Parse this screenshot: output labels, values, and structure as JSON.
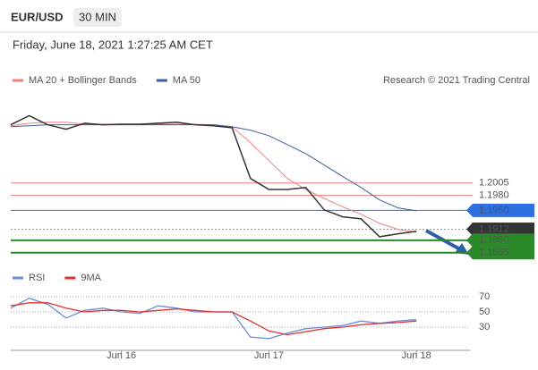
{
  "header": {
    "symbol": "EUR/USD",
    "interval": "30 MIN",
    "timestamp": "Friday, June 18, 2021 1:27:25 AM CET",
    "credit": "Research © 2021 Trading Central"
  },
  "chart_data": [
    {
      "type": "line",
      "categories": [
        null,
        null,
        null,
        null,
        null,
        null,
        "Jun 16",
        null,
        null,
        null,
        null,
        null,
        null,
        null,
        "Jun 17",
        null,
        null,
        null,
        null,
        null,
        null,
        null,
        "Jun 18"
      ],
      "price": [
        1.2122,
        1.214,
        1.2122,
        1.2113,
        1.2125,
        1.2122,
        1.2123,
        1.2123,
        1.2125,
        1.2127,
        1.2122,
        1.212,
        1.2116,
        1.2014,
        1.1992,
        1.1992,
        1.1996,
        1.1951,
        1.1937,
        1.1933,
        1.1897,
        1.1903,
        1.1908
      ],
      "price_color": "#333333",
      "series": [
        {
          "name": "MA 20 + Bollinger Bands",
          "color": "#f08080",
          "values": [
            1.212,
            1.2125,
            1.2127,
            1.2127,
            1.2123,
            1.2123,
            1.2123,
            1.2123,
            1.2123,
            1.2123,
            1.2123,
            1.2122,
            1.2118,
            1.2086,
            1.205,
            1.2014,
            1.1992,
            1.1974,
            1.1957,
            1.1942,
            1.1924,
            1.1912,
            1.1906
          ]
        },
        {
          "name": "MA 50",
          "color": "#3b5fa0",
          "values": [
            1.2118,
            1.212,
            1.2122,
            1.2122,
            1.2122,
            1.2122,
            1.2122,
            1.2122,
            1.2122,
            1.2122,
            1.2122,
            1.2122,
            1.2118,
            1.2111,
            1.21,
            1.2082,
            1.2064,
            1.2041,
            1.2018,
            1.1996,
            1.1971,
            1.1955,
            1.1949
          ]
        }
      ],
      "ylim": [
        1.1843,
        1.2193
      ],
      "levels": {
        "values": [
          1.2005,
          1.198,
          1.195,
          1.1912,
          1.189,
          1.1865
        ],
        "value_labels": [
          "1.2005",
          "1.1980",
          "1.1950",
          "1.1912",
          "1.1890",
          "1.1865"
        ],
        "colors": [
          "#f08080",
          "#f08080",
          "#2f6fe0",
          "#333333",
          "#2a8a2a",
          "#2a8a2a"
        ],
        "badges": [
          false,
          false,
          true,
          true,
          true,
          true
        ]
      }
    },
    {
      "type": "line",
      "series": [
        {
          "name": "RSI",
          "color": "#6a8fd8",
          "values": [
            55,
            68,
            60,
            42,
            52,
            55,
            50,
            48,
            58,
            55,
            50,
            50,
            50,
            17,
            15,
            22,
            28,
            30,
            32,
            38,
            35,
            38,
            40
          ]
        },
        {
          "name": "9MA",
          "color": "#e03030",
          "values": [
            58,
            62,
            62,
            55,
            50,
            52,
            52,
            50,
            52,
            54,
            52,
            50,
            50,
            38,
            25,
            20,
            24,
            28,
            30,
            33,
            35,
            36,
            38
          ]
        }
      ],
      "ylim": [
        10,
        90
      ],
      "yticks": [
        30,
        50,
        70
      ]
    }
  ]
}
